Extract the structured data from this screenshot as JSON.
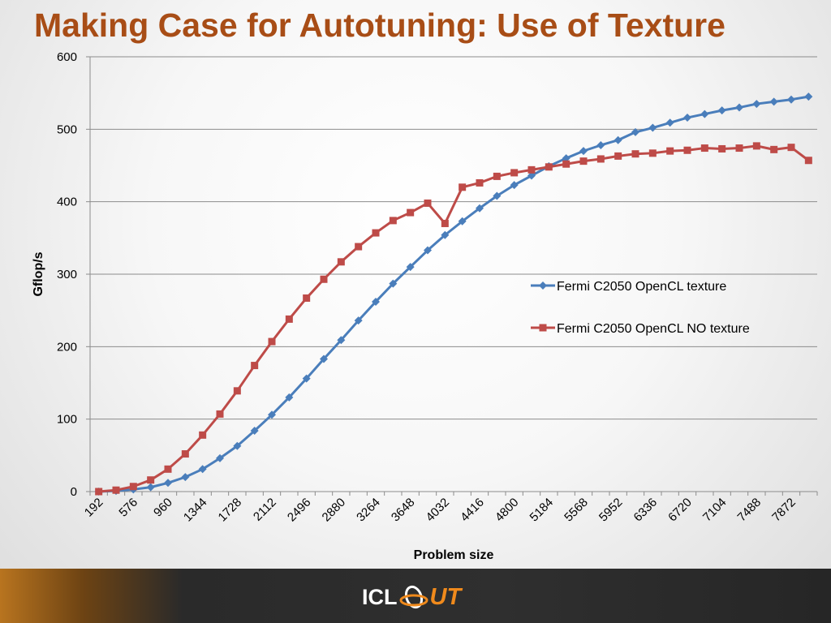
{
  "page": {
    "title": "Making Case for Autotuning: Use of Texture"
  },
  "footer": {
    "logo_left": "ICL",
    "logo_right": "UT"
  },
  "chart_data": {
    "type": "line",
    "title": "",
    "xlabel": "Problem size",
    "ylabel": "Gflop/s",
    "ylim": [
      0,
      600
    ],
    "yticks": [
      0,
      100,
      200,
      300,
      400,
      500,
      600
    ],
    "grid": "horizontal",
    "legend_position": "right",
    "x": [
      192,
      384,
      576,
      768,
      960,
      1152,
      1344,
      1536,
      1728,
      1920,
      2112,
      2304,
      2496,
      2688,
      2880,
      3072,
      3264,
      3456,
      3648,
      3840,
      4032,
      4224,
      4416,
      4608,
      4800,
      4992,
      5184,
      5376,
      5568,
      5760,
      5952,
      6144,
      6336,
      6528,
      6720,
      6912,
      7104,
      7296,
      7488,
      7680,
      7872,
      8064
    ],
    "xtick_labels": [
      "192",
      "576",
      "960",
      "1344",
      "1728",
      "2112",
      "2496",
      "2880",
      "3264",
      "3648",
      "4032",
      "4416",
      "4800",
      "5184",
      "5568",
      "5952",
      "6336",
      "6720",
      "7104",
      "7488",
      "7872"
    ],
    "series": [
      {
        "name": "Fermi C2050 OpenCL texture",
        "color": "#4a7ebb",
        "marker": "diamond",
        "values": [
          0,
          1,
          3,
          6,
          12,
          20,
          31,
          46,
          63,
          84,
          106,
          130,
          156,
          183,
          209,
          236,
          262,
          287,
          310,
          333,
          354,
          373,
          391,
          408,
          423,
          436,
          449,
          460,
          470,
          478,
          485,
          496,
          502,
          509,
          516,
          521,
          526,
          530,
          535,
          538,
          541,
          545
        ]
      },
      {
        "name": "Fermi C2050 OpenCL NO texture",
        "color": "#be4b48",
        "marker": "square",
        "values": [
          0,
          2,
          7,
          16,
          31,
          52,
          78,
          107,
          139,
          174,
          207,
          238,
          267,
          293,
          317,
          338,
          357,
          374,
          385,
          398,
          370,
          420,
          426,
          435,
          440,
          444,
          448,
          452,
          456,
          459,
          463,
          466,
          467,
          470,
          471,
          474,
          473,
          474,
          477,
          472,
          475,
          457
        ]
      }
    ]
  }
}
